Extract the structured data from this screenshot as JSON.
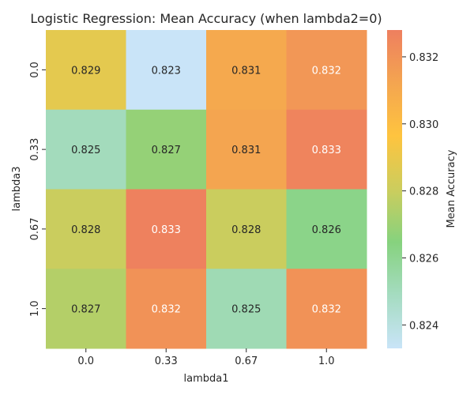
{
  "chart_data": {
    "type": "heatmap",
    "title": "Logistic Regression: Mean Accuracy (when lambda2=0)",
    "xlabel": "lambda1",
    "ylabel": "lambda3",
    "x_categories": [
      "0.0",
      "0.33",
      "0.67",
      "1.0"
    ],
    "y_categories": [
      "0.0",
      "0.33",
      "0.67",
      "1.0"
    ],
    "values": [
      [
        0.8288,
        0.8233,
        0.831,
        0.8318
      ],
      [
        0.825,
        0.8268,
        0.8312,
        0.8326
      ],
      [
        0.828,
        0.8327,
        0.828,
        0.8262
      ],
      [
        0.8275,
        0.832,
        0.8252,
        0.832
      ]
    ],
    "cell_labels": [
      [
        "0.829",
        "0.823",
        "0.831",
        "0.832"
      ],
      [
        "0.825",
        "0.827",
        "0.831",
        "0.833"
      ],
      [
        "0.828",
        "0.833",
        "0.828",
        "0.826"
      ],
      [
        "0.827",
        "0.832",
        "0.825",
        "0.832"
      ]
    ],
    "colorbar": {
      "label": "Mean Accuracy",
      "range": [
        0.8233,
        0.8328
      ],
      "ticks": [
        "0.824",
        "0.826",
        "0.828",
        "0.830",
        "0.832"
      ],
      "tick_values": [
        0.824,
        0.826,
        0.828,
        0.83,
        0.832
      ],
      "colors": [
        "#c9e4f8",
        "#a5dcc1",
        "#86d27e",
        "#cccd5d",
        "#fec43f",
        "#f4a550",
        "#ee7f5f"
      ]
    }
  }
}
